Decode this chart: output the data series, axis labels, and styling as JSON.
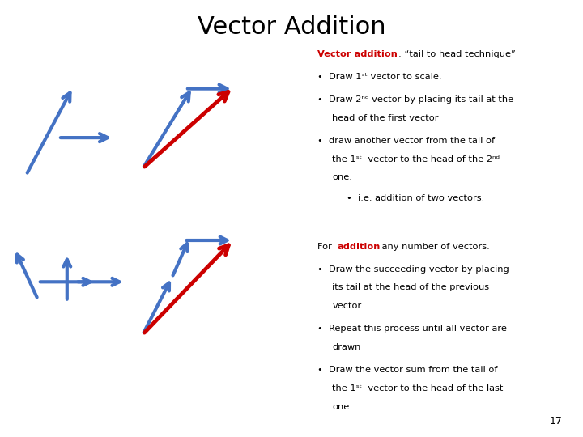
{
  "title": "Vector Addition",
  "title_color": "#000000",
  "title_fontsize": 22,
  "bg_color": "#ffffff",
  "blue_color": "#4472c4",
  "red_color": "#cc0000",
  "text_color": "#000000",
  "page_number": "17",
  "top_arrows": {
    "tl_v1": [
      0.045,
      0.6,
      0.125,
      0.8
    ],
    "tl_v2": [
      0.1,
      0.685,
      0.195,
      0.685
    ],
    "tr_v1": [
      0.245,
      0.615,
      0.33,
      0.8
    ],
    "tr_v2": [
      0.318,
      0.797,
      0.4,
      0.797
    ],
    "tr_red": [
      0.245,
      0.615,
      0.4,
      0.8
    ]
  },
  "bottom_arrows": {
    "bl_v1": [
      0.065,
      0.315,
      0.025,
      0.43
    ],
    "bl_v2": [
      0.115,
      0.31,
      0.115,
      0.42
    ],
    "bl_v3": [
      0.065,
      0.355,
      0.165,
      0.355
    ],
    "bl_v4": [
      0.13,
      0.355,
      0.215,
      0.355
    ],
    "br_v1": [
      0.245,
      0.235,
      0.295,
      0.365
    ],
    "br_v2": [
      0.295,
      0.365,
      0.325,
      0.455
    ],
    "br_v3": [
      0.316,
      0.45,
      0.4,
      0.45
    ],
    "br_red": [
      0.245,
      0.235,
      0.4,
      0.45
    ]
  }
}
